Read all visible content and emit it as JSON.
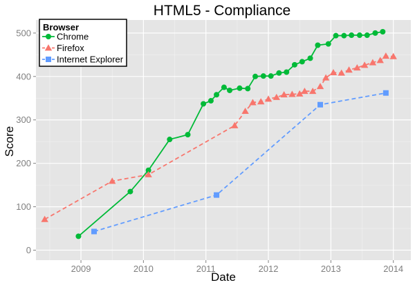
{
  "chart_data": {
    "type": "line",
    "title": "HTML5 - Compliance",
    "xlabel": "Date",
    "ylabel": "Score",
    "xlim": [
      2008.28,
      2014.28
    ],
    "ylim": [
      -23,
      530
    ],
    "x_ticks": [
      2009,
      2010,
      2011,
      2012,
      2013,
      2014
    ],
    "x_tick_labels": [
      "2009",
      "2010",
      "2011",
      "2012",
      "2013",
      "2014"
    ],
    "y_ticks": [
      0,
      100,
      200,
      300,
      400,
      500
    ],
    "y_tick_labels": [
      "0",
      "100",
      "200",
      "300",
      "400",
      "500"
    ],
    "grid": true,
    "legend": {
      "title": "Browser",
      "position": "top-left"
    },
    "series": [
      {
        "name": "Chrome",
        "color": "#00ba38",
        "marker": "circle",
        "line": "solid",
        "points": [
          [
            2008.96,
            32
          ],
          [
            2009.79,
            135
          ],
          [
            2010.08,
            184
          ],
          [
            2010.42,
            255
          ],
          [
            2010.71,
            266
          ],
          [
            2010.96,
            337
          ],
          [
            2011.08,
            344
          ],
          [
            2011.17,
            358
          ],
          [
            2011.29,
            375
          ],
          [
            2011.38,
            368
          ],
          [
            2011.54,
            373
          ],
          [
            2011.67,
            372
          ],
          [
            2011.79,
            400
          ],
          [
            2011.92,
            401
          ],
          [
            2012.04,
            401
          ],
          [
            2012.17,
            408
          ],
          [
            2012.29,
            410
          ],
          [
            2012.42,
            427
          ],
          [
            2012.54,
            434
          ],
          [
            2012.67,
            442
          ],
          [
            2012.79,
            472
          ],
          [
            2012.96,
            475
          ],
          [
            2013.08,
            494
          ],
          [
            2013.21,
            494
          ],
          [
            2013.33,
            495
          ],
          [
            2013.46,
            495
          ],
          [
            2013.58,
            495
          ],
          [
            2013.71,
            500
          ],
          [
            2013.83,
            503
          ]
        ]
      },
      {
        "name": "Firefox",
        "color": "#f8766d",
        "marker": "triangle",
        "line": "dashed",
        "points": [
          [
            2008.42,
            71
          ],
          [
            2009.5,
            159
          ],
          [
            2010.08,
            174
          ],
          [
            2011.46,
            287
          ],
          [
            2011.63,
            320
          ],
          [
            2011.75,
            340
          ],
          [
            2011.88,
            342
          ],
          [
            2012.0,
            348
          ],
          [
            2012.13,
            352
          ],
          [
            2012.25,
            358
          ],
          [
            2012.38,
            359
          ],
          [
            2012.5,
            360
          ],
          [
            2012.58,
            366
          ],
          [
            2012.71,
            366
          ],
          [
            2012.83,
            377
          ],
          [
            2012.92,
            397
          ],
          [
            2013.04,
            409
          ],
          [
            2013.17,
            408
          ],
          [
            2013.29,
            415
          ],
          [
            2013.42,
            420
          ],
          [
            2013.54,
            426
          ],
          [
            2013.67,
            432
          ],
          [
            2013.79,
            437
          ],
          [
            2013.88,
            447
          ],
          [
            2014.0,
            446
          ]
        ]
      },
      {
        "name": "Internet Explorer",
        "color": "#619cff",
        "marker": "square",
        "line": "dashed",
        "points": [
          [
            2009.21,
            43
          ],
          [
            2011.17,
            127
          ],
          [
            2012.83,
            335
          ],
          [
            2013.88,
            362
          ]
        ]
      }
    ]
  }
}
